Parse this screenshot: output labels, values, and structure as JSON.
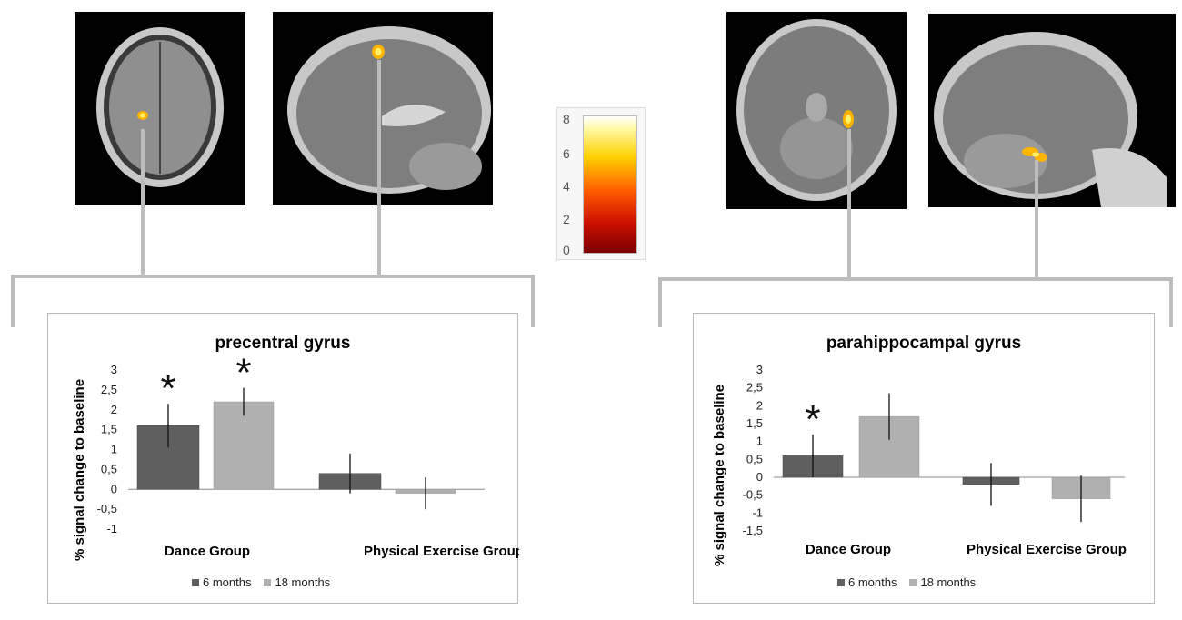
{
  "colorbar": {
    "ticks": [
      "8",
      "6",
      "4",
      "2",
      "0"
    ]
  },
  "charts": [
    {
      "type": "bar",
      "title": "precentral gyrus",
      "ylabel": "% signal change to baseline",
      "categories": [
        "Dance Group",
        "Physical Exercise Group"
      ],
      "series": [
        {
          "name": "6 months",
          "values": [
            1.6,
            0.4
          ],
          "error": [
            0.55,
            0.5
          ],
          "color": "#5f5f5f"
        },
        {
          "name": "18 months",
          "values": [
            2.2,
            -0.1
          ],
          "error": [
            0.35,
            0.4
          ],
          "color": "#b0b0b0"
        }
      ],
      "yticks": [
        "3",
        "2,5",
        "2",
        "1,5",
        "1",
        "0,5",
        "0",
        "-0,5",
        "-1"
      ],
      "ylim": [
        -1,
        3
      ],
      "significance": [
        "*",
        "*"
      ]
    },
    {
      "type": "bar",
      "title": "parahippocampal gyrus",
      "ylabel": "% signal change to baseline",
      "categories": [
        "Dance Group",
        "Physical Exercise Group"
      ],
      "series": [
        {
          "name": "6 months",
          "values": [
            0.6,
            -0.2
          ],
          "error": [
            0.6,
            0.6
          ],
          "color": "#5f5f5f"
        },
        {
          "name": "18 months",
          "values": [
            1.7,
            -0.6
          ],
          "error": [
            0.65,
            0.65
          ],
          "color": "#b0b0b0"
        }
      ],
      "yticks": [
        "3",
        "2,5",
        "2",
        "1,5",
        "1",
        "0,5",
        "0",
        "-0,5",
        "-1",
        "-1,5"
      ],
      "ylim": [
        -1.5,
        3
      ],
      "significance": [
        "*"
      ]
    }
  ]
}
